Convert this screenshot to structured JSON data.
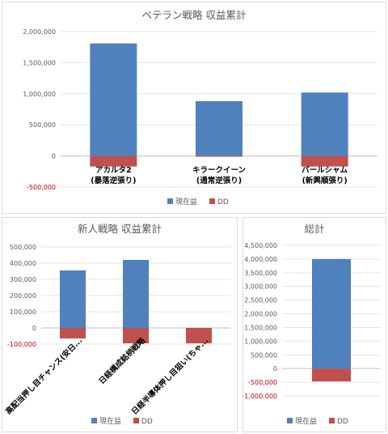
{
  "chart_data": [
    {
      "type": "bar",
      "title": "ベテラン戦略 収益累計",
      "categories": [
        [
          "アカルタ2",
          "(暴落逆張り)"
        ],
        [
          "キラークイーン",
          "(通常逆張り)"
        ],
        [
          "パールシャム",
          "(新興順張り)"
        ]
      ],
      "series": [
        {
          "name": "現在益",
          "color": "#4f81bd",
          "values": [
            1810000,
            880000,
            1020000
          ]
        },
        {
          "name": "DD",
          "color": "#c0504d",
          "values": [
            -170000,
            -10000,
            -170000
          ]
        }
      ],
      "yticks": [
        "2,000,000",
        "1,500,000",
        "1,000,000",
        "500,000",
        "0",
        "-500,000"
      ],
      "ylim": [
        -500000,
        2000000
      ],
      "legend": "bottom"
    },
    {
      "type": "bar",
      "title": "新人戦略 収益累計",
      "categories": [
        [
          "高配当押し目チャンス(安日..."
        ],
        [
          "日経構成銘柄戦略"
        ],
        [
          "日経半導体押し目狙い(ちゃ..."
        ]
      ],
      "series": [
        {
          "name": "現在益",
          "color": "#4f81bd",
          "values": [
            355000,
            420000,
            0
          ]
        },
        {
          "name": "DD",
          "color": "#c0504d",
          "values": [
            -65000,
            -95000,
            -95000
          ]
        }
      ],
      "yticks": [
        "500,000",
        "400,000",
        "300,000",
        "200,000",
        "100,000",
        "0",
        "-100,000"
      ],
      "ylim": [
        -100000,
        500000
      ],
      "legend": "bottom"
    },
    {
      "type": "bar",
      "title": "総計",
      "categories": [
        [
          ""
        ]
      ],
      "series": [
        {
          "name": "現在益",
          "color": "#4f81bd",
          "values": [
            4000000
          ]
        },
        {
          "name": "DD",
          "color": "#c0504d",
          "values": [
            -470000
          ]
        }
      ],
      "yticks": [
        "4,500,000",
        "4,000,000",
        "3,500,000",
        "3,000,000",
        "2,500,000",
        "2,000,000",
        "1,500,000",
        "1,000,000",
        "500,000",
        "0",
        "-500,000",
        "-1,000,000"
      ],
      "ylim": [
        -1000000,
        4500000
      ],
      "legend": "bottom"
    }
  ]
}
